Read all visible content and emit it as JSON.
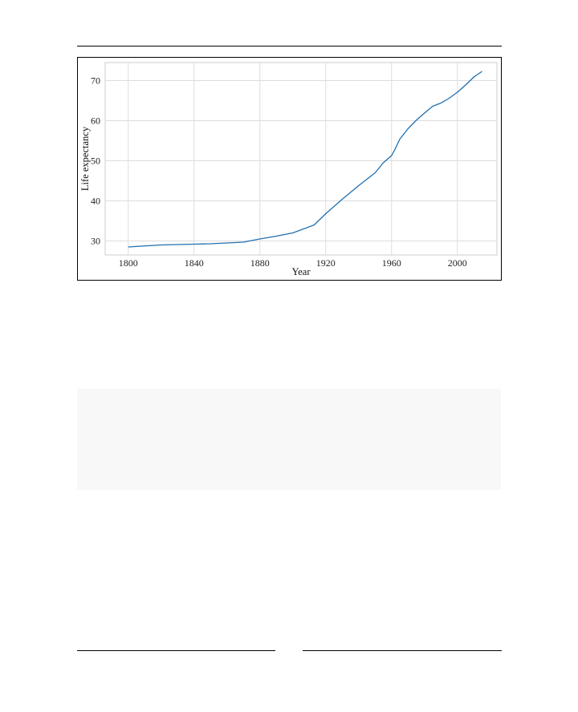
{
  "page": {
    "page_number": ""
  },
  "chart_data": {
    "type": "line",
    "title": "",
    "xlabel": "Year",
    "ylabel": "Life expectancy",
    "xlim": [
      1786,
      2024
    ],
    "ylim": [
      26.5,
      74.5
    ],
    "xticks": [
      1800,
      1840,
      1880,
      1920,
      1960,
      2000
    ],
    "yticks": [
      30,
      40,
      50,
      60,
      70
    ],
    "grid": true,
    "line_color": "#1f6fb0",
    "series": [
      {
        "x": [
          1800,
          1820,
          1840,
          1850,
          1870,
          1880,
          1890,
          1900,
          1913,
          1920,
          1930,
          1940,
          1950,
          1955,
          1960,
          1962,
          1965,
          1970,
          1975,
          1980,
          1985,
          1990,
          1995,
          2000,
          2005,
          2010,
          2015
        ],
        "y": [
          28.5,
          29.0,
          29.2,
          29.3,
          29.7,
          30.5,
          31.2,
          32.0,
          34.0,
          36.8,
          40.4,
          43.8,
          47.0,
          49.5,
          51.3,
          52.8,
          55.4,
          58.0,
          60.1,
          61.9,
          63.6,
          64.4,
          65.6,
          67.1,
          68.9,
          70.9,
          72.3
        ]
      }
    ]
  }
}
